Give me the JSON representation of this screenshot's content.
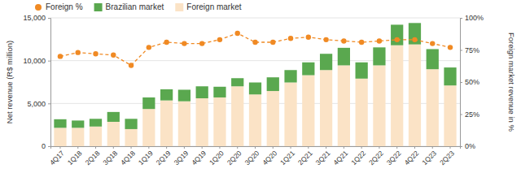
{
  "chart_data": {
    "type": "bar",
    "stacked": true,
    "grid": true,
    "legend": "top",
    "categories": [
      "4Q17",
      "1Q18",
      "2Q18",
      "3Q18",
      "4Q18",
      "1Q19",
      "2Q19",
      "3Q19",
      "4Q19",
      "1Q20",
      "2Q20",
      "3Q20",
      "4Q20",
      "1Q21",
      "2Q21",
      "3Q21",
      "4Q21",
      "1Q22",
      "2Q22",
      "3Q22",
      "4Q22",
      "1Q23",
      "2Q23"
    ],
    "y_label": "Net revenue (R$ million)",
    "y2_label": "Foreign market revenue in %",
    "ylim": [
      0,
      15000
    ],
    "yticks": [
      0,
      {
        "value": 5000,
        "label": "5,000"
      },
      {
        "value": 10000,
        "label": "10,000"
      },
      {
        "value": 15000,
        "label": "15,000"
      }
    ],
    "y2lim": [
      0,
      100
    ],
    "y2ticks": [
      {
        "value": 0,
        "label": "0%"
      },
      {
        "value": 25,
        "label": "25%"
      },
      {
        "value": 50,
        "label": "50%"
      },
      {
        "value": 75,
        "label": "75%"
      },
      {
        "value": 100,
        "label": "100%"
      }
    ],
    "series": [
      {
        "name": "Foreign %",
        "type": "line",
        "axis": "y2",
        "color": "#f08a24",
        "marker": "circle",
        "line_style": "dashed",
        "values": [
          70,
          73,
          72,
          71,
          63,
          77,
          81,
          80,
          80,
          83,
          88,
          81,
          81,
          84,
          85,
          83,
          82,
          81,
          82,
          83,
          83,
          80,
          77
        ]
      },
      {
        "name": "Brazilian market",
        "type": "bar",
        "color": "#5aa84f",
        "values": [
          1000,
          850,
          900,
          1150,
          1200,
          1350,
          1300,
          1350,
          1400,
          1250,
          950,
          1400,
          1600,
          1450,
          1500,
          1900,
          2050,
          1900,
          2100,
          2400,
          2500,
          2350,
          2100
        ]
      },
      {
        "name": "Foreign market",
        "type": "bar",
        "color": "#fbe3c6",
        "values": [
          2150,
          2150,
          2300,
          2850,
          2000,
          4350,
          5350,
          5250,
          5600,
          5700,
          7000,
          6050,
          6450,
          7450,
          8300,
          8900,
          9450,
          7900,
          9450,
          11800,
          11900,
          9000,
          7100
        ]
      }
    ]
  }
}
